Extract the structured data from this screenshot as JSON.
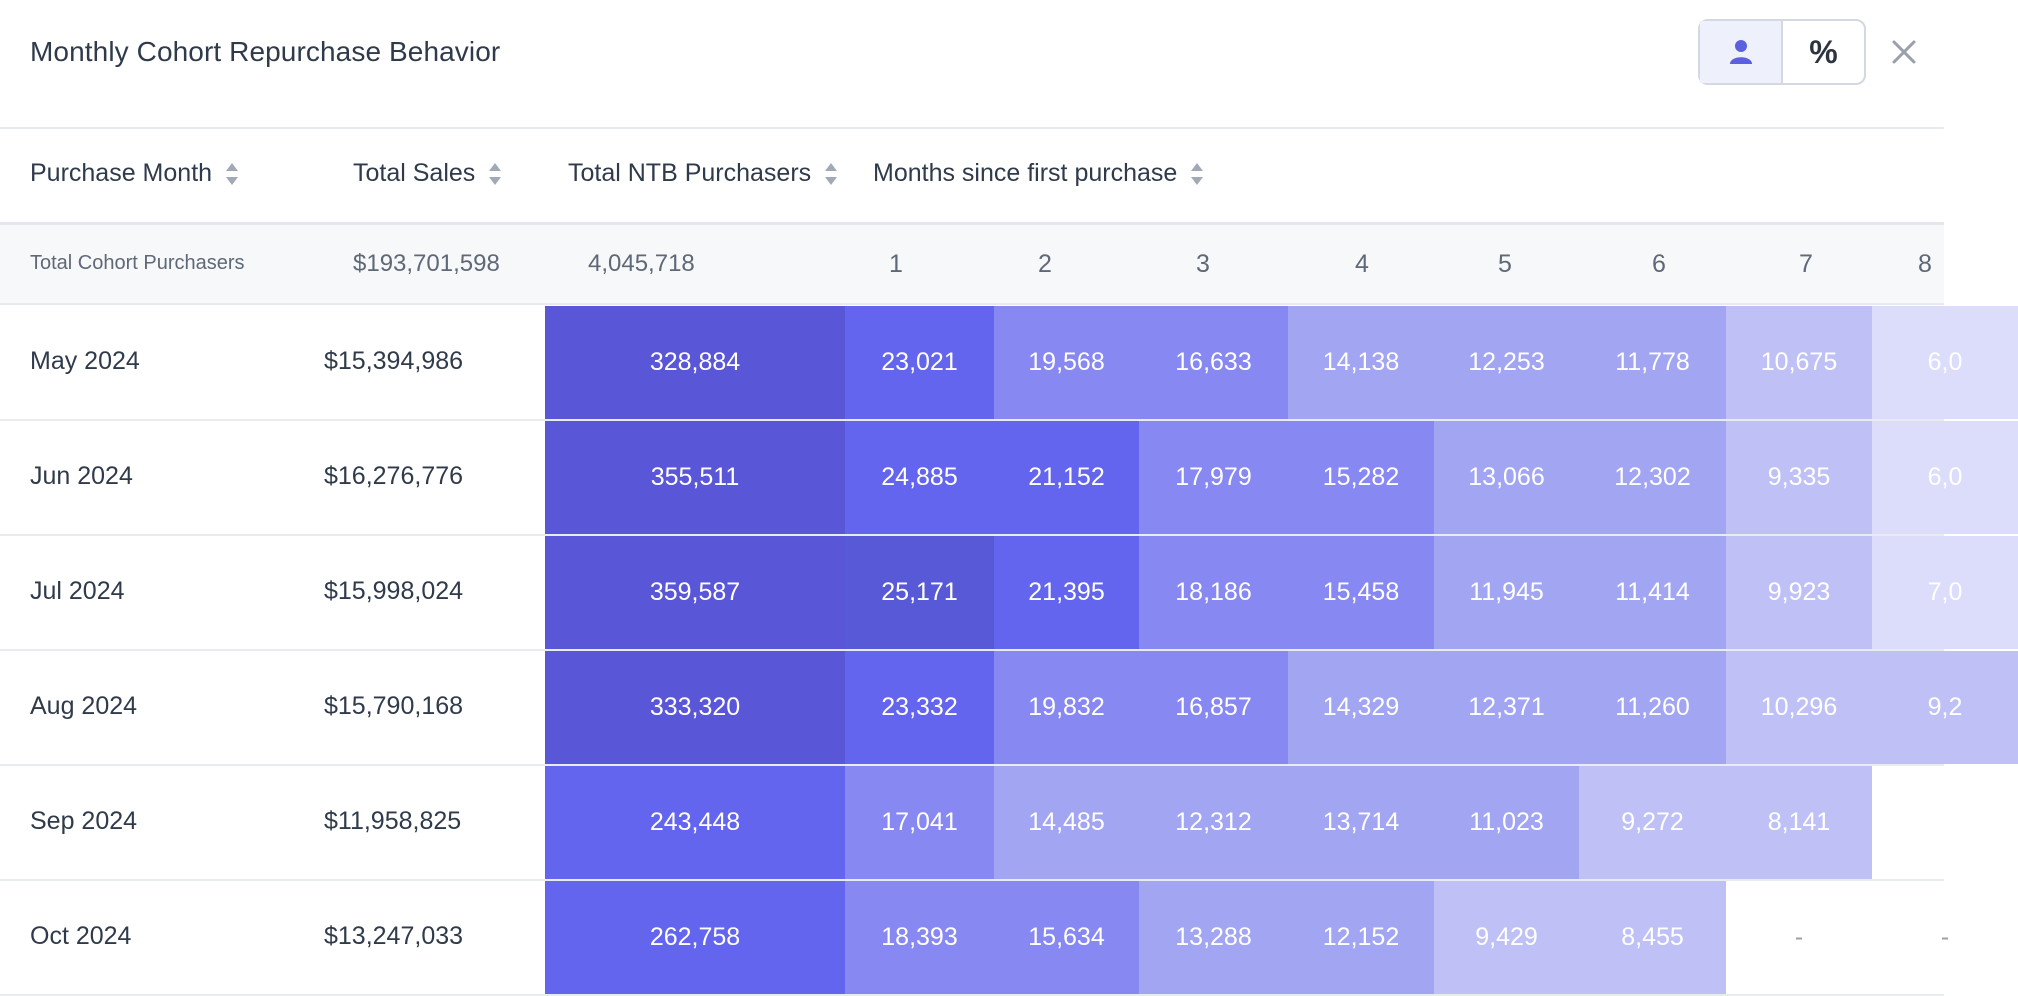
{
  "title": "Monthly Cohort Repurchase Behavior",
  "toggle": {
    "people_icon": "person-icon",
    "percent_label": "%"
  },
  "close_icon": "close-icon",
  "headers": {
    "purchase_month": "Purchase Month",
    "total_sales": "Total Sales",
    "total_ntb": "Total NTB Purchasers",
    "months_since": "Months since first purchase"
  },
  "totals": {
    "label": "Total Cohort Purchasers",
    "sales": "$193,701,598",
    "ntb": "4,045,718",
    "months": [
      "1",
      "2",
      "3",
      "4",
      "5",
      "6",
      "7",
      "8"
    ]
  },
  "rows": [
    {
      "month": "May 2024",
      "sales": "$15,394,986",
      "ntb": "328,884",
      "values": [
        "23,021",
        "19,568",
        "16,633",
        "14,138",
        "12,253",
        "11,778",
        "10,675",
        "6,0"
      ]
    },
    {
      "month": "Jun 2024",
      "sales": "$16,276,776",
      "ntb": "355,511",
      "values": [
        "24,885",
        "21,152",
        "17,979",
        "15,282",
        "13,066",
        "12,302",
        "9,335",
        "6,0"
      ]
    },
    {
      "month": "Jul 2024",
      "sales": "$15,998,024",
      "ntb": "359,587",
      "values": [
        "25,171",
        "21,395",
        "18,186",
        "15,458",
        "11,945",
        "11,414",
        "9,923",
        "7,0"
      ]
    },
    {
      "month": "Aug 2024",
      "sales": "$15,790,168",
      "ntb": "333,320",
      "values": [
        "23,332",
        "19,832",
        "16,857",
        "14,329",
        "12,371",
        "11,260",
        "10,296",
        "9,2"
      ]
    },
    {
      "month": "Sep 2024",
      "sales": "$11,958,825",
      "ntb": "243,448",
      "values": [
        "17,041",
        "14,485",
        "12,312",
        "13,714",
        "11,023",
        "9,272",
        "8,141",
        ""
      ]
    },
    {
      "month": "Oct 2024",
      "sales": "$13,247,033",
      "ntb": "262,758",
      "values": [
        "18,393",
        "15,634",
        "13,288",
        "12,152",
        "9,429",
        "8,455",
        "-",
        "-"
      ]
    }
  ],
  "colors": {
    "c0": "#5a56d8",
    "c1": "#6365ee",
    "c2": "#8788f1",
    "c3": "#a2a5f2",
    "c4": "#bfc1f6",
    "c5": "#dcddfa",
    "empty": "#ffffff",
    "darkest": "#5859d6",
    "empty_text": "#9aa0ab",
    "accent": "#5b5fe0"
  },
  "shades": {
    "ntb": [
      "c0",
      "c0",
      "c0",
      "c0",
      "c1",
      "c1"
    ],
    "cells": [
      [
        "c1",
        "c2",
        "c2",
        "c3",
        "c3",
        "c3",
        "c4",
        "c5"
      ],
      [
        "c1",
        "c1",
        "c2",
        "c2",
        "c3",
        "c3",
        "c4",
        "c5"
      ],
      [
        "darkest",
        "c1",
        "c2",
        "c2",
        "c3",
        "c3",
        "c4",
        "c5"
      ],
      [
        "c1",
        "c2",
        "c2",
        "c3",
        "c3",
        "c3",
        "c4",
        "c4"
      ],
      [
        "c2",
        "c3",
        "c3",
        "c3",
        "c3",
        "c4",
        "c4",
        "empty"
      ],
      [
        "c2",
        "c2",
        "c3",
        "c3",
        "c4",
        "c4",
        "empty",
        "empty"
      ]
    ]
  }
}
